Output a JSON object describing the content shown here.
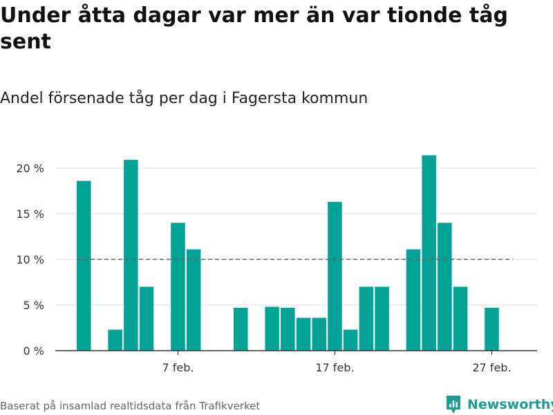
{
  "title": "Under åtta dagar var mer än var tionde tåg sent",
  "subtitle": "Andel försenade tåg per dag i Fagersta kommun",
  "source": "Baserat på insamlad realtidsdata från Trafikverket",
  "brand": {
    "name": "Newsworthy",
    "icon": "bar-chart-logo-icon",
    "color": "#1a9e8f"
  },
  "chart_data": {
    "type": "bar",
    "x_days": [
      1,
      2,
      3,
      4,
      5,
      6,
      7,
      8,
      9,
      10,
      11,
      12,
      13,
      14,
      15,
      16,
      17,
      18,
      19,
      20,
      21,
      22,
      23,
      24,
      25,
      26,
      27,
      28
    ],
    "values": [
      18.6,
      0,
      2.3,
      20.9,
      7.0,
      0,
      14.0,
      11.1,
      0,
      0,
      4.7,
      0,
      4.8,
      4.7,
      3.6,
      3.6,
      16.3,
      2.3,
      7.0,
      7.0,
      0,
      11.1,
      21.4,
      14.0,
      7.0,
      0,
      4.7,
      0
    ],
    "ylim": [
      0,
      23
    ],
    "yticks": [
      0,
      5,
      10,
      15,
      20
    ],
    "ytick_labels": [
      "0 %",
      "5 %",
      "10 %",
      "15 %",
      "20 %"
    ],
    "xticks": [
      7,
      17,
      27
    ],
    "xtick_labels": [
      "7 feb.",
      "17 feb.",
      "27 feb."
    ],
    "reference_line": 10,
    "bar_color": "#00a396",
    "grid": true
  }
}
